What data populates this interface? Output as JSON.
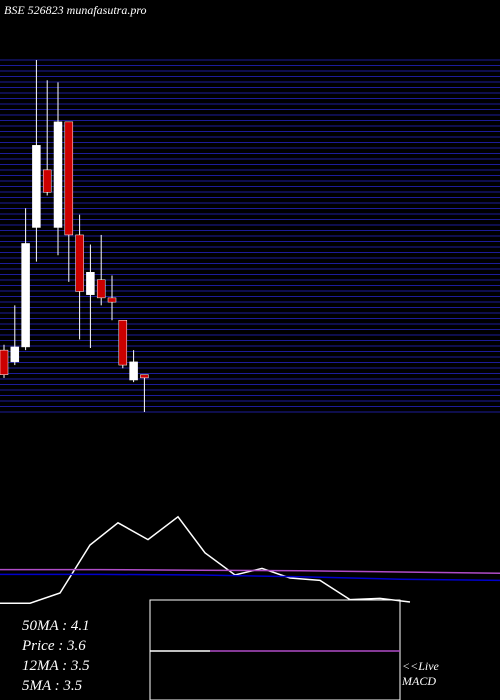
{
  "header": {
    "title": "BSE 526823 munafasutra.pro"
  },
  "chart_data": [
    {
      "type": "candlestick",
      "ylim": [
        3.3,
        6.6
      ],
      "up_color": "#ffffff",
      "down_color": "#cc0000",
      "open": [
        3.88,
        3.77,
        3.91,
        5.03,
        5.57,
        5.03,
        6.02,
        4.96,
        4.4,
        4.54,
        4.37,
        4.16,
        3.6,
        3.65
      ],
      "close": [
        3.65,
        3.91,
        4.88,
        5.8,
        5.36,
        6.02,
        4.96,
        4.43,
        4.61,
        4.37,
        4.33,
        3.74,
        3.77,
        3.62
      ],
      "high": [
        3.93,
        4.3,
        5.21,
        6.6,
        6.41,
        6.39,
        6.02,
        5.15,
        4.87,
        4.96,
        4.58,
        4.16,
        3.88,
        3.65
      ],
      "low": [
        3.62,
        3.74,
        3.88,
        4.71,
        5.33,
        4.77,
        4.52,
        3.98,
        3.9,
        4.3,
        4.16,
        3.71,
        3.58,
        3.3
      ]
    },
    {
      "type": "line",
      "xlim": [
        0,
        500
      ],
      "ylim": [
        0,
        100
      ],
      "series": [
        {
          "color": "#ffffff",
          "x": [
            0,
            30,
            60,
            90,
            118,
            148,
            178,
            205,
            235,
            262,
            290,
            320,
            350,
            380,
            410
          ],
          "values": [
            14,
            14,
            22.5,
            62.5,
            81,
            67,
            86,
            56,
            37.5,
            43,
            35,
            33,
            17,
            18,
            15
          ]
        },
        {
          "color": "#0000cc",
          "x": [
            0,
            100,
            200,
            300,
            400,
            500
          ],
          "values": [
            38,
            38,
            37.5,
            36,
            34,
            33
          ]
        },
        {
          "color": "#b04cc8",
          "x": [
            0,
            100,
            200,
            300,
            400,
            500
          ],
          "values": [
            42,
            42,
            41.5,
            41,
            40,
            39
          ]
        }
      ]
    }
  ],
  "stats": [
    "50MA : 4.1",
    "Price   : 3.6",
    "12MA : 3.5",
    "5MA : 3.5"
  ],
  "macd_label": [
    "<<Live",
    "MACD"
  ]
}
